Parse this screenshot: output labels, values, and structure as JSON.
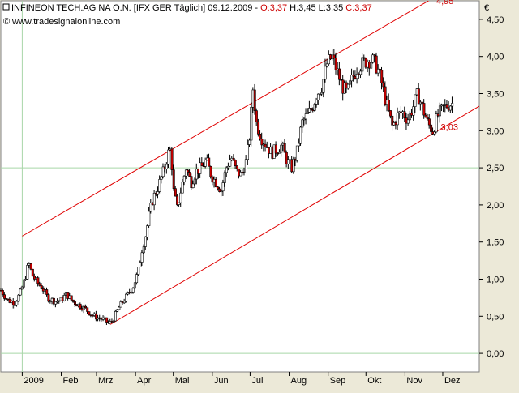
{
  "chart_data": {
    "type": "candlestick",
    "header": {
      "symbol_text": "INFINEON TECH.AG NA O.N. [IFX GER  Täglich] 09.12.2009 - ",
      "open_text": "O:3,37",
      "hl_text": " H:3,45 L:3,35 ",
      "close_text": "C:3,37",
      "source_text": "www.tradesignalonline.com"
    },
    "currency_label": "€",
    "y_ticks": [
      "0,00",
      "0,50",
      "1,00",
      "1,50",
      "2,00",
      "2,50",
      "3,00",
      "3,50",
      "4,00",
      "4,50"
    ],
    "y_tick_values": [
      0.0,
      0.5,
      1.0,
      1.5,
      2.0,
      2.5,
      3.0,
      3.5,
      4.0,
      4.5
    ],
    "ylim": [
      -0.25,
      4.75
    ],
    "x_labels": [
      "2009",
      "Feb",
      "Mrz",
      "Apr",
      "Mai",
      "Jun",
      "Jul",
      "Aug",
      "Sep",
      "Okt",
      "Nov",
      "Dez"
    ],
    "x_label_days": [
      0,
      31,
      59,
      90,
      120,
      151,
      181,
      212,
      243,
      273,
      304,
      334
    ],
    "xlim": [
      -17,
      363
    ],
    "channel": {
      "upper": {
        "x": [
          0,
          343
        ],
        "y": [
          1.58,
          4.95
        ]
      },
      "upper_end_label": "4,95",
      "lower": {
        "x": [
          70,
          363
        ],
        "y": [
          0.39,
          3.33
        ]
      },
      "lower_label": "3,03",
      "lower_label_day": 326,
      "lower_label_value": 3.03
    },
    "reference_lines": {
      "x_day": 0,
      "y_value": 2.5
    },
    "price_path": [
      [
        -17,
        0.85
      ],
      [
        -12,
        0.72
      ],
      [
        -6,
        0.68
      ],
      [
        -2,
        0.8
      ],
      [
        2,
        1.0
      ],
      [
        5,
        1.22
      ],
      [
        8,
        1.05
      ],
      [
        12,
        0.95
      ],
      [
        16,
        0.88
      ],
      [
        20,
        0.75
      ],
      [
        26,
        0.7
      ],
      [
        31,
        0.72
      ],
      [
        35,
        0.8
      ],
      [
        40,
        0.7
      ],
      [
        45,
        0.65
      ],
      [
        50,
        0.6
      ],
      [
        55,
        0.52
      ],
      [
        60,
        0.48
      ],
      [
        65,
        0.45
      ],
      [
        69,
        0.4
      ],
      [
        72,
        0.45
      ],
      [
        76,
        0.6
      ],
      [
        80,
        0.7
      ],
      [
        84,
        0.8
      ],
      [
        88,
        0.9
      ],
      [
        92,
        1.1
      ],
      [
        95,
        1.4
      ],
      [
        98,
        1.6
      ],
      [
        101,
        1.9
      ],
      [
        104,
        2.1
      ],
      [
        107,
        2.2
      ],
      [
        110,
        2.35
      ],
      [
        113,
        2.5
      ],
      [
        116,
        2.7
      ],
      [
        118,
        2.75
      ],
      [
        120,
        2.2
      ],
      [
        123,
        1.95
      ],
      [
        126,
        2.2
      ],
      [
        130,
        2.5
      ],
      [
        134,
        2.3
      ],
      [
        138,
        2.45
      ],
      [
        142,
        2.5
      ],
      [
        146,
        2.6
      ],
      [
        150,
        2.4
      ],
      [
        154,
        2.3
      ],
      [
        158,
        2.2
      ],
      [
        162,
        2.5
      ],
      [
        166,
        2.65
      ],
      [
        170,
        2.45
      ],
      [
        174,
        2.4
      ],
      [
        178,
        2.6
      ],
      [
        181,
        3.0
      ],
      [
        183,
        3.6
      ],
      [
        186,
        3.1
      ],
      [
        190,
        2.9
      ],
      [
        194,
        2.8
      ],
      [
        198,
        2.7
      ],
      [
        202,
        2.75
      ],
      [
        206,
        2.8
      ],
      [
        210,
        2.6
      ],
      [
        214,
        2.5
      ],
      [
        218,
        2.7
      ],
      [
        222,
        3.1
      ],
      [
        226,
        3.2
      ],
      [
        230,
        3.3
      ],
      [
        234,
        3.5
      ],
      [
        238,
        3.6
      ],
      [
        242,
        3.9
      ],
      [
        246,
        4.0
      ],
      [
        250,
        3.8
      ],
      [
        254,
        3.6
      ],
      [
        258,
        3.5
      ],
      [
        262,
        3.7
      ],
      [
        266,
        3.85
      ],
      [
        270,
        3.9
      ],
      [
        274,
        3.95
      ],
      [
        278,
        3.95
      ],
      [
        282,
        3.85
      ],
      [
        286,
        3.6
      ],
      [
        290,
        3.3
      ],
      [
        294,
        3.05
      ],
      [
        298,
        3.2
      ],
      [
        302,
        3.25
      ],
      [
        306,
        3.15
      ],
      [
        310,
        3.3
      ],
      [
        314,
        3.5
      ],
      [
        318,
        3.3
      ],
      [
        322,
        3.1
      ],
      [
        326,
        3.0
      ],
      [
        330,
        3.2
      ],
      [
        334,
        3.3
      ],
      [
        338,
        3.35
      ],
      [
        342,
        3.37
      ]
    ]
  },
  "colors": {
    "bg": "#ece9d8",
    "plot_bg": "#ffffff",
    "up_candle": "#ffffff",
    "down_candle": "#cc0000",
    "channel": "#e00000",
    "ref_line": "#a8d6a8",
    "axis_text": "#000000",
    "header_red": "#cc0000"
  }
}
